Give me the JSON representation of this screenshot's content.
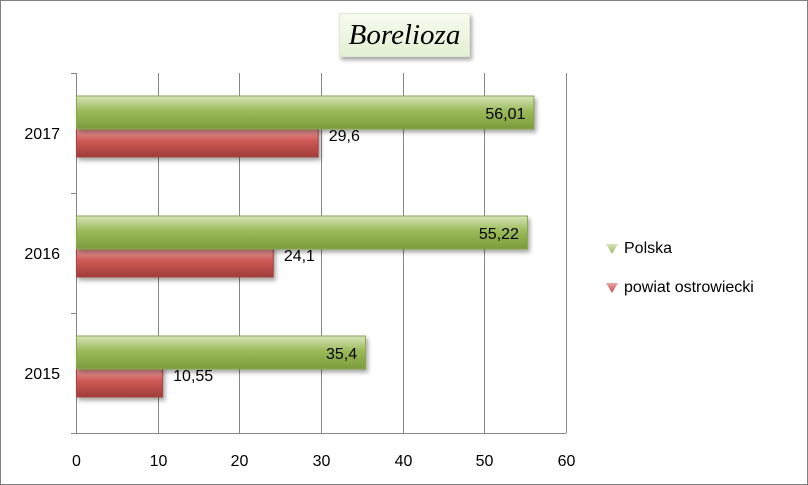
{
  "chart_data": {
    "type": "bar",
    "orientation": "horizontal",
    "title": "Borelioza",
    "categories": [
      "2015",
      "2016",
      "2017"
    ],
    "series": [
      {
        "name": "Polska",
        "values": [
          35.4,
          55.22,
          56.01
        ],
        "labels": [
          "35,4",
          "55,22",
          "56,01"
        ],
        "color": "#9bbb59"
      },
      {
        "name": "powiat ostrowiecki",
        "values": [
          10.55,
          24.1,
          29.6
        ],
        "labels": [
          "10,55",
          "24,1",
          "29,6"
        ],
        "color": "#c0504d"
      }
    ],
    "xlim": [
      0,
      60
    ],
    "xticks": [
      "0",
      "10",
      "20",
      "30",
      "40",
      "50",
      "60"
    ],
    "grid": true,
    "legend_position": "right"
  }
}
